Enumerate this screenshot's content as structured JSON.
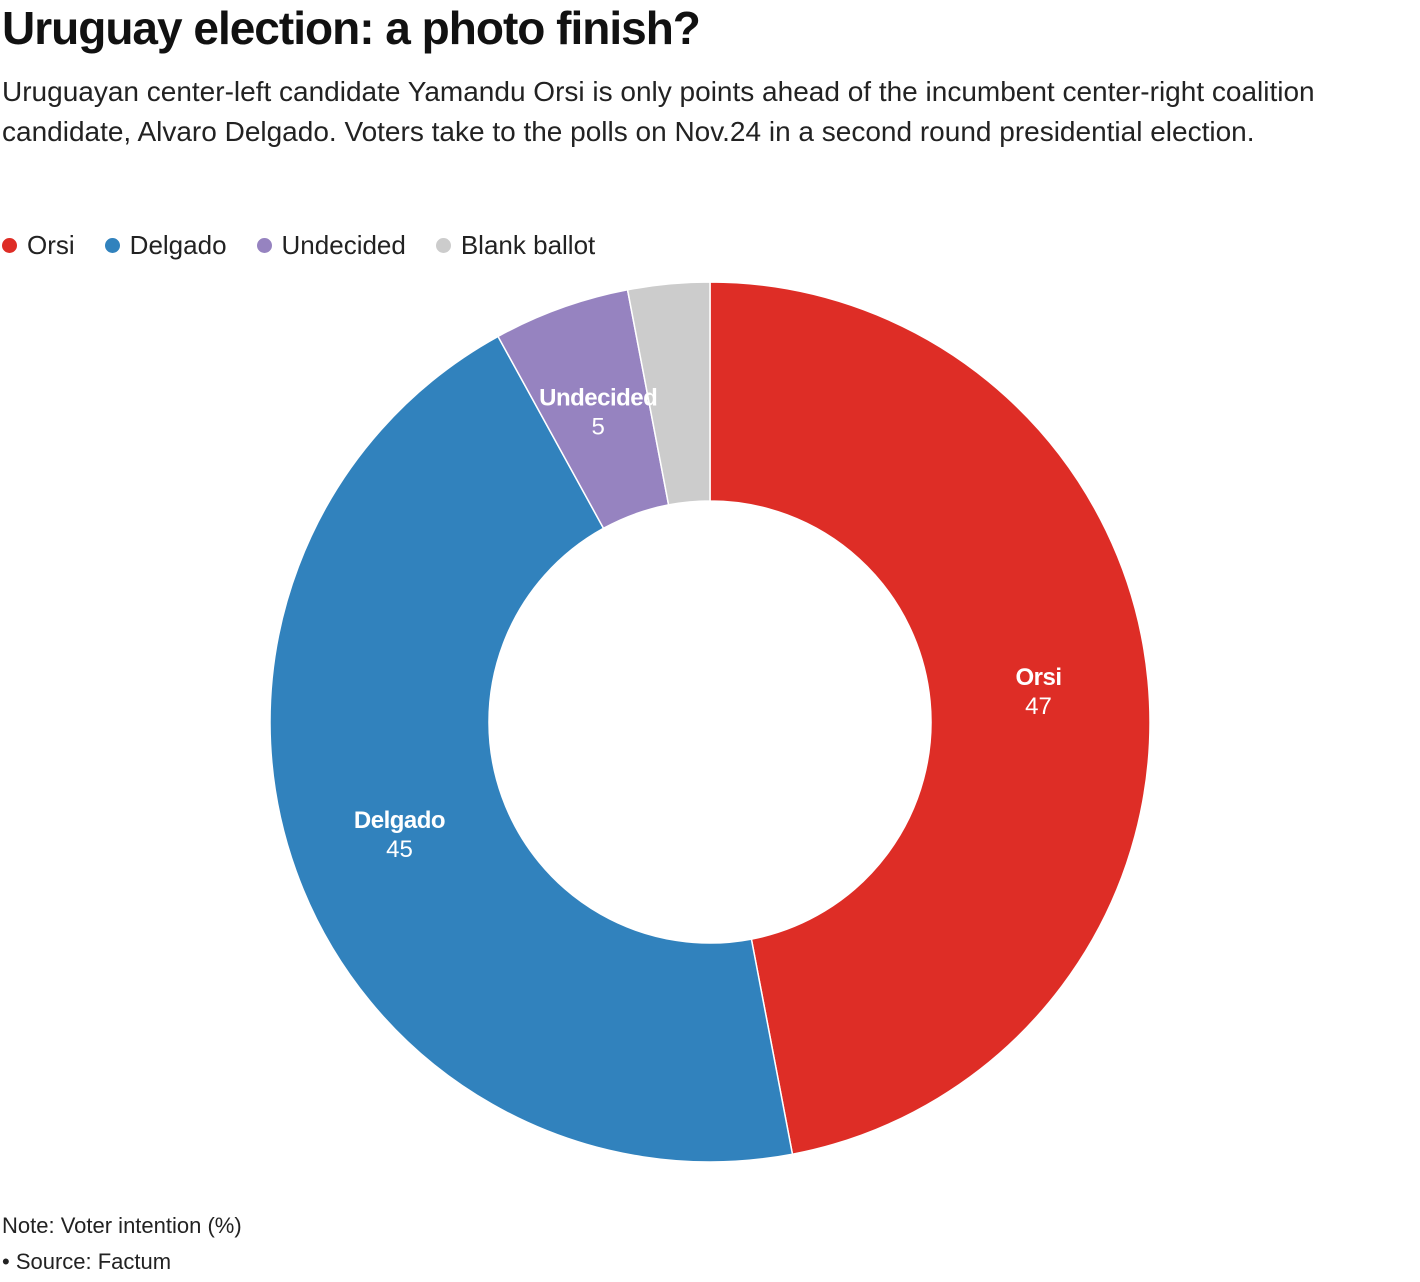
{
  "title": "Uruguay election: a photo finish?",
  "subtitle": "Uruguayan center-left candidate Yamandu Orsi is only points ahead of the incumbent center-right coalition candidate, Alvaro Delgado. Voters take to the polls on Nov.24 in a second round presidential election.",
  "legend": [
    {
      "label": "Orsi",
      "color": "#de2d26"
    },
    {
      "label": "Delgado",
      "color": "#3182bd"
    },
    {
      "label": "Undecided",
      "color": "#9683c0"
    },
    {
      "label": "Blank ballot",
      "color": "#cccccc"
    }
  ],
  "chart_data": {
    "type": "pie",
    "donut": true,
    "categories": [
      "Orsi",
      "Delgado",
      "Undecided",
      "Blank ballot"
    ],
    "values": [
      47,
      45,
      5,
      3
    ],
    "colors": [
      "#de2d26",
      "#3182bd",
      "#9683c0",
      "#cccccc"
    ],
    "data_labels": [
      {
        "name": "Orsi",
        "value": "47"
      },
      {
        "name": "Delgado",
        "value": "45"
      },
      {
        "name": "Undecided",
        "value": "5"
      }
    ],
    "unit": "%"
  },
  "footer": {
    "note": "Note: Voter intention (%)",
    "source": "• Source: Factum"
  }
}
